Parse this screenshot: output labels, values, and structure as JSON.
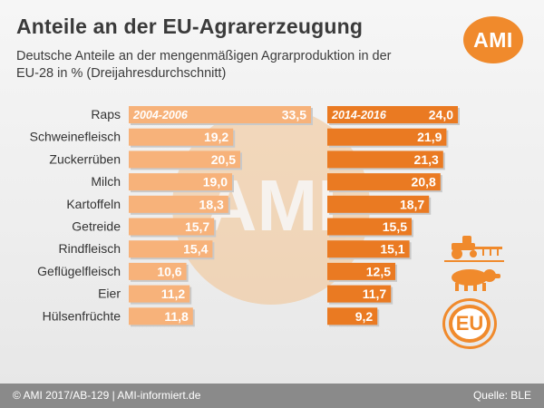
{
  "header": {
    "title": "Anteile an der EU-Agrarerzeugung",
    "subtitle": "Deutsche Anteile an der mengenmäßigen Agrarproduktion in der EU-28 in % (Dreijahresdurchschnitt)",
    "logo_text": "AMI",
    "watermark_text": "AMI"
  },
  "footer": {
    "left": "© AMI 2017/AB-129 | AMI-informiert.de",
    "right": "Quelle: BLE"
  },
  "badge": {
    "text": "EU"
  },
  "icons": [
    "tractor-icon",
    "pig-icon",
    "eu-badge-icon"
  ],
  "colors": {
    "accent": "#f08a2c",
    "bar_left": "#f7b27a",
    "bar_right": "#ea7a22",
    "footer": "#8a8a8a"
  },
  "chart_data": {
    "type": "bar",
    "orientation": "horizontal",
    "categories": [
      "Raps",
      "Schweinefleisch",
      "Zuckerrüben",
      "Milch",
      "Kartoffeln",
      "Getreide",
      "Rindfleisch",
      "Geflügelfleisch",
      "Eier",
      "Hülsenfrüchte"
    ],
    "series": [
      {
        "name": "2004-2006",
        "values": [
          33.5,
          19.2,
          20.5,
          19.0,
          18.3,
          15.7,
          15.4,
          10.6,
          11.2,
          11.8
        ],
        "labels": [
          "33,5",
          "19,2",
          "20,5",
          "19,0",
          "18,3",
          "15,7",
          "15,4",
          "10,6",
          "11,2",
          "11,8"
        ]
      },
      {
        "name": "2014-2016",
        "values": [
          24.0,
          21.9,
          21.3,
          20.8,
          18.7,
          15.5,
          15.1,
          12.5,
          11.7,
          9.2
        ],
        "labels": [
          "24,0",
          "21,9",
          "21,3",
          "20,8",
          "18,7",
          "15,5",
          "15,1",
          "12,5",
          "11,7",
          "9,2"
        ]
      }
    ],
    "title": "Anteile an der EU-Agrarerzeugung",
    "xlabel": "",
    "ylabel": ""
  }
}
